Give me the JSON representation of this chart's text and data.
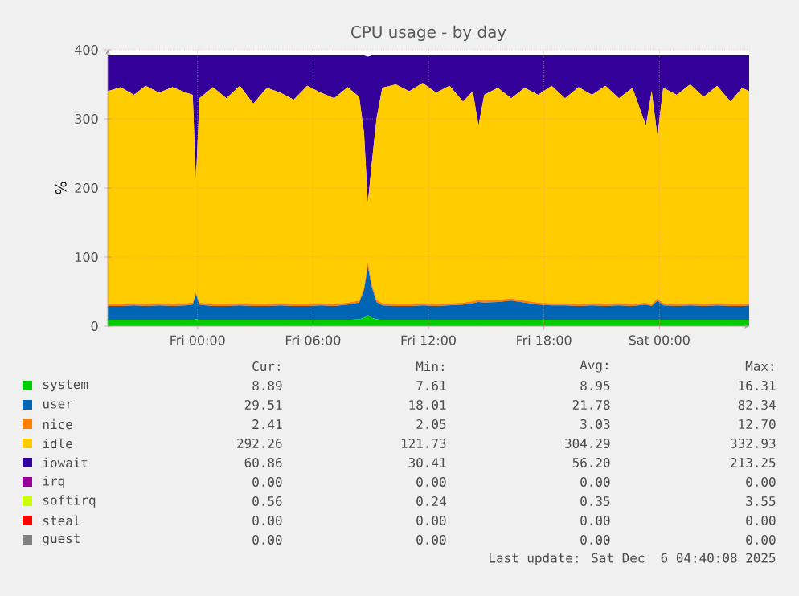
{
  "chart_data": {
    "type": "area",
    "title": "CPU usage - by day",
    "ylabel": "%",
    "stacked": true,
    "grid": true,
    "legend": "bottom",
    "x": [
      "2025-12-04T19:20",
      "2025-12-04T20:00",
      "2025-12-04T20:42",
      "2025-12-04T21:18",
      "2025-12-04T22:00",
      "2025-12-04T22:42",
      "2025-12-04T23:24",
      "2025-12-04T23:45",
      "2025-12-04T23:55",
      "2025-12-05T00:06",
      "2025-12-05T00:48",
      "2025-12-05T01:30",
      "2025-12-05T02:12",
      "2025-12-05T02:54",
      "2025-12-05T03:36",
      "2025-12-05T04:18",
      "2025-12-05T05:00",
      "2025-12-05T05:42",
      "2025-12-05T06:24",
      "2025-12-05T07:06",
      "2025-12-05T07:48",
      "2025-12-05T08:24",
      "2025-12-05T08:39",
      "2025-12-05T08:51",
      "2025-12-05T09:03",
      "2025-12-05T09:18",
      "2025-12-05T09:36",
      "2025-12-05T10:18",
      "2025-12-05T11:00",
      "2025-12-05T11:42",
      "2025-12-05T12:24",
      "2025-12-05T13:06",
      "2025-12-05T13:48",
      "2025-12-05T14:18",
      "2025-12-05T14:36",
      "2025-12-05T14:54",
      "2025-12-05T15:36",
      "2025-12-05T16:18",
      "2025-12-05T17:00",
      "2025-12-05T17:42",
      "2025-12-05T18:24",
      "2025-12-05T19:06",
      "2025-12-05T19:48",
      "2025-12-05T20:30",
      "2025-12-05T21:12",
      "2025-12-05T21:54",
      "2025-12-05T22:36",
      "2025-12-05T23:18",
      "2025-12-05T23:36",
      "2025-12-05T23:54",
      "2025-12-06T00:12",
      "2025-12-06T00:54",
      "2025-12-06T01:36",
      "2025-12-06T02:18",
      "2025-12-06T03:00",
      "2025-12-06T03:42",
      "2025-12-06T04:18",
      "2025-12-06T04:40"
    ],
    "xlim": [
      "2025-12-04T19:20",
      "2025-12-06T04:40"
    ],
    "xticks": [
      {
        "value": "2025-12-05T00:00",
        "label": "Fri 00:00"
      },
      {
        "value": "2025-12-05T06:00",
        "label": "Fri 06:00"
      },
      {
        "value": "2025-12-05T12:00",
        "label": "Fri 12:00"
      },
      {
        "value": "2025-12-05T18:00",
        "label": "Fri 18:00"
      },
      {
        "value": "2025-12-06T00:00",
        "label": "Sat 00:00"
      }
    ],
    "ylim": [
      0,
      400
    ],
    "yticks": [
      0,
      100,
      200,
      300,
      400
    ],
    "series": [
      {
        "name": "system",
        "color": "#00cc00",
        "values": [
          9,
          9,
          9,
          9,
          9,
          9,
          9,
          9,
          10,
          9,
          9,
          9,
          9,
          9,
          9,
          9,
          9,
          9,
          9,
          9,
          9,
          10,
          12,
          16,
          12,
          10,
          9,
          9,
          9,
          9,
          9,
          9,
          9,
          9,
          9,
          9,
          9,
          9,
          9,
          9,
          9,
          9,
          9,
          9,
          9,
          9,
          9,
          9,
          9,
          9,
          9,
          9,
          9,
          9,
          9,
          9,
          9,
          9
        ]
      },
      {
        "name": "user",
        "color": "#0066b3",
        "values": [
          20,
          20,
          21,
          20,
          21,
          20,
          21,
          22,
          36,
          22,
          20,
          20,
          21,
          20,
          20,
          21,
          20,
          20,
          21,
          20,
          22,
          24,
          40,
          70,
          45,
          25,
          21,
          20,
          20,
          21,
          20,
          21,
          22,
          24,
          26,
          25,
          26,
          28,
          25,
          22,
          21,
          21,
          20,
          21,
          20,
          21,
          20,
          22,
          20,
          28,
          21,
          20,
          21,
          20,
          21,
          20,
          20,
          21
        ]
      },
      {
        "name": "nice",
        "color": "#ff8000",
        "values": [
          3,
          3,
          3,
          3,
          3,
          3,
          3,
          3,
          3,
          3,
          3,
          3,
          3,
          3,
          3,
          3,
          3,
          3,
          3,
          3,
          3,
          3,
          4,
          8,
          5,
          3,
          3,
          3,
          3,
          3,
          3,
          3,
          3,
          3,
          3,
          3,
          3,
          3,
          3,
          3,
          3,
          3,
          3,
          3,
          3,
          3,
          3,
          3,
          3,
          3,
          3,
          3,
          3,
          3,
          3,
          3,
          3,
          3
        ]
      },
      {
        "name": "idle",
        "color": "#ffcc00",
        "values": [
          308,
          314,
          302,
          316,
          305,
          314,
          305,
          301,
          162,
          296,
          314,
          298,
          315,
          290,
          313,
          305,
          296,
          316,
          305,
          298,
          312,
          295,
          224,
          84,
          173,
          262,
          312,
          318,
          308,
          319,
          306,
          315,
          291,
          304,
          252,
          298,
          307,
          290,
          308,
          301,
          315,
          297,
          314,
          302,
          316,
          297,
          313,
          256,
          308,
          235,
          312,
          303,
          317,
          300,
          315,
          293,
          313,
          307
        ]
      },
      {
        "name": "iowait",
        "color": "#330099",
        "values": [
          52,
          46,
          57,
          44,
          54,
          46,
          54,
          57,
          181,
          62,
          46,
          62,
          44,
          70,
          47,
          54,
          64,
          44,
          54,
          62,
          46,
          60,
          112,
          212,
          157,
          92,
          47,
          42,
          52,
          40,
          54,
          44,
          67,
          52,
          102,
          57,
          47,
          62,
          47,
          57,
          44,
          62,
          46,
          57,
          44,
          62,
          47,
          102,
          52,
          117,
          47,
          57,
          42,
          60,
          44,
          67,
          47,
          52
        ]
      },
      {
        "name": "irq",
        "color": "#990099",
        "values": [
          null,
          null,
          null,
          null,
          null,
          null,
          null,
          null,
          null,
          null,
          null,
          null,
          null,
          null,
          null,
          null,
          null,
          null,
          null,
          null,
          null,
          null,
          null,
          null,
          null,
          null,
          null,
          null,
          null,
          null,
          null,
          null,
          null,
          null,
          null,
          null,
          null,
          null,
          null,
          null,
          null,
          null,
          null,
          null,
          null,
          null,
          null,
          null,
          null,
          null,
          null,
          null,
          null,
          null,
          null,
          null,
          null,
          null
        ]
      },
      {
        "name": "softirq",
        "color": "#ccff00",
        "values": [
          null,
          null,
          null,
          null,
          null,
          null,
          null,
          null,
          null,
          null,
          null,
          null,
          null,
          null,
          null,
          null,
          null,
          null,
          null,
          null,
          null,
          null,
          null,
          null,
          null,
          null,
          null,
          null,
          null,
          null,
          null,
          null,
          null,
          null,
          null,
          null,
          null,
          null,
          null,
          null,
          null,
          null,
          null,
          null,
          null,
          null,
          null,
          null,
          null,
          null,
          null,
          null,
          null,
          null,
          null,
          null,
          null,
          null
        ]
      },
      {
        "name": "steal",
        "color": "#ff0000",
        "values": [
          null,
          null,
          null,
          null,
          null,
          null,
          null,
          null,
          null,
          null,
          null,
          null,
          null,
          null,
          null,
          null,
          null,
          null,
          null,
          null,
          null,
          null,
          null,
          null,
          null,
          null,
          null,
          null,
          null,
          null,
          null,
          null,
          null,
          null,
          null,
          null,
          null,
          null,
          null,
          null,
          null,
          null,
          null,
          null,
          null,
          null,
          null,
          null,
          null,
          null,
          null,
          null,
          null,
          null,
          null,
          null,
          null,
          null
        ]
      },
      {
        "name": "guest",
        "color": "#808080",
        "values": [
          null,
          null,
          null,
          null,
          null,
          null,
          null,
          null,
          null,
          null,
          null,
          null,
          null,
          null,
          null,
          null,
          null,
          null,
          null,
          null,
          null,
          null,
          null,
          null,
          null,
          null,
          null,
          null,
          null,
          null,
          null,
          null,
          null,
          null,
          null,
          null,
          null,
          null,
          null,
          null,
          null,
          null,
          null,
          null,
          null,
          null,
          null,
          null,
          null,
          null,
          null,
          null,
          null,
          null,
          null,
          null,
          null,
          null
        ]
      }
    ],
    "annotations": [
      "Cur:",
      "Min:",
      "Avg:",
      "Max:",
      "8.89",
      "7.61",
      "8.95",
      "16.31",
      "29.51",
      "18.01",
      "21.78",
      "82.34",
      "2.41",
      "2.05",
      "3.03",
      "12.70",
      "292.26",
      "121.73",
      "304.29",
      "332.93",
      "60.86",
      "30.41",
      "56.20",
      "213.25",
      "0.00",
      "0.00",
      "0.00",
      "0.00",
      "0.56",
      "0.24",
      "0.35",
      "3.55",
      "0.00",
      "0.00",
      "0.00",
      "0.00",
      "0.00",
      "0.00",
      "0.00",
      "0.00",
      "Last update: Sat Dec  6 04:40:08 2025"
    ]
  }
}
